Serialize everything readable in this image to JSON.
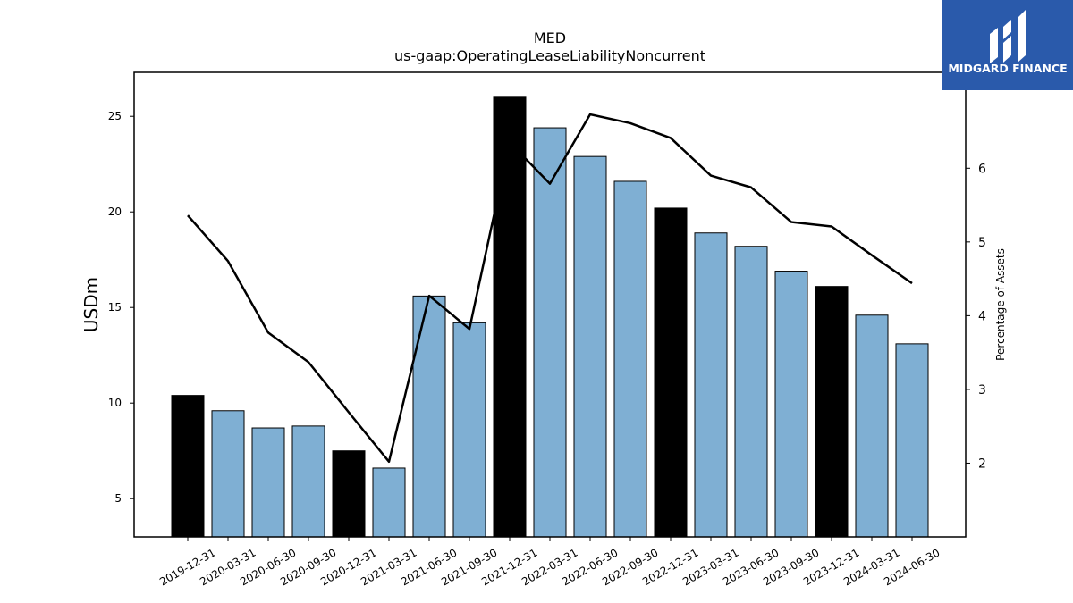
{
  "logo": {
    "text": "MIDGARD FINANCE",
    "background": "#2a5aab"
  },
  "chart_data": {
    "type": "bar",
    "title": "MED",
    "subtitle": "us-gaap:OperatingLeaseLiabilityNoncurrent",
    "ylabel": "USDm",
    "y2label": "Percentage of Assets",
    "ylim": [
      3.0,
      27.3
    ],
    "y2lim": [
      1.0,
      7.3
    ],
    "yticks": [
      5,
      10,
      15,
      20,
      25
    ],
    "y2ticks": [
      2,
      3,
      4,
      5,
      6
    ],
    "grid": false,
    "colors": {
      "year_end_bar": "#000000",
      "quarter_bar": "#7fafd3",
      "line": "#000000"
    },
    "categories": [
      "2019-12-31",
      "2020-03-31",
      "2020-06-30",
      "2020-09-30",
      "2020-12-31",
      "2021-03-31",
      "2021-06-30",
      "2021-09-30",
      "2021-12-31",
      "2022-03-31",
      "2022-06-30",
      "2022-09-30",
      "2022-12-31",
      "2023-03-31",
      "2023-06-30",
      "2023-09-30",
      "2023-12-31",
      "2024-03-31",
      "2024-06-30"
    ],
    "series": [
      {
        "type": "bar",
        "axis": "left",
        "values": [
          10.4,
          9.6,
          8.7,
          8.8,
          7.5,
          6.6,
          15.6,
          14.2,
          26.0,
          24.4,
          22.9,
          21.6,
          20.2,
          18.9,
          18.2,
          16.9,
          16.1,
          14.6,
          13.1
        ],
        "year_end": [
          true,
          false,
          false,
          false,
          true,
          false,
          false,
          false,
          true,
          false,
          false,
          false,
          true,
          false,
          false,
          false,
          true,
          false,
          false
        ]
      },
      {
        "type": "line",
        "axis": "right",
        "values": [
          5.36,
          4.74,
          3.77,
          3.37,
          2.69,
          2.02,
          4.27,
          3.82,
          6.35,
          5.79,
          6.73,
          6.61,
          6.41,
          5.9,
          5.74,
          5.27,
          5.21,
          4.82,
          4.44
        ]
      }
    ]
  }
}
